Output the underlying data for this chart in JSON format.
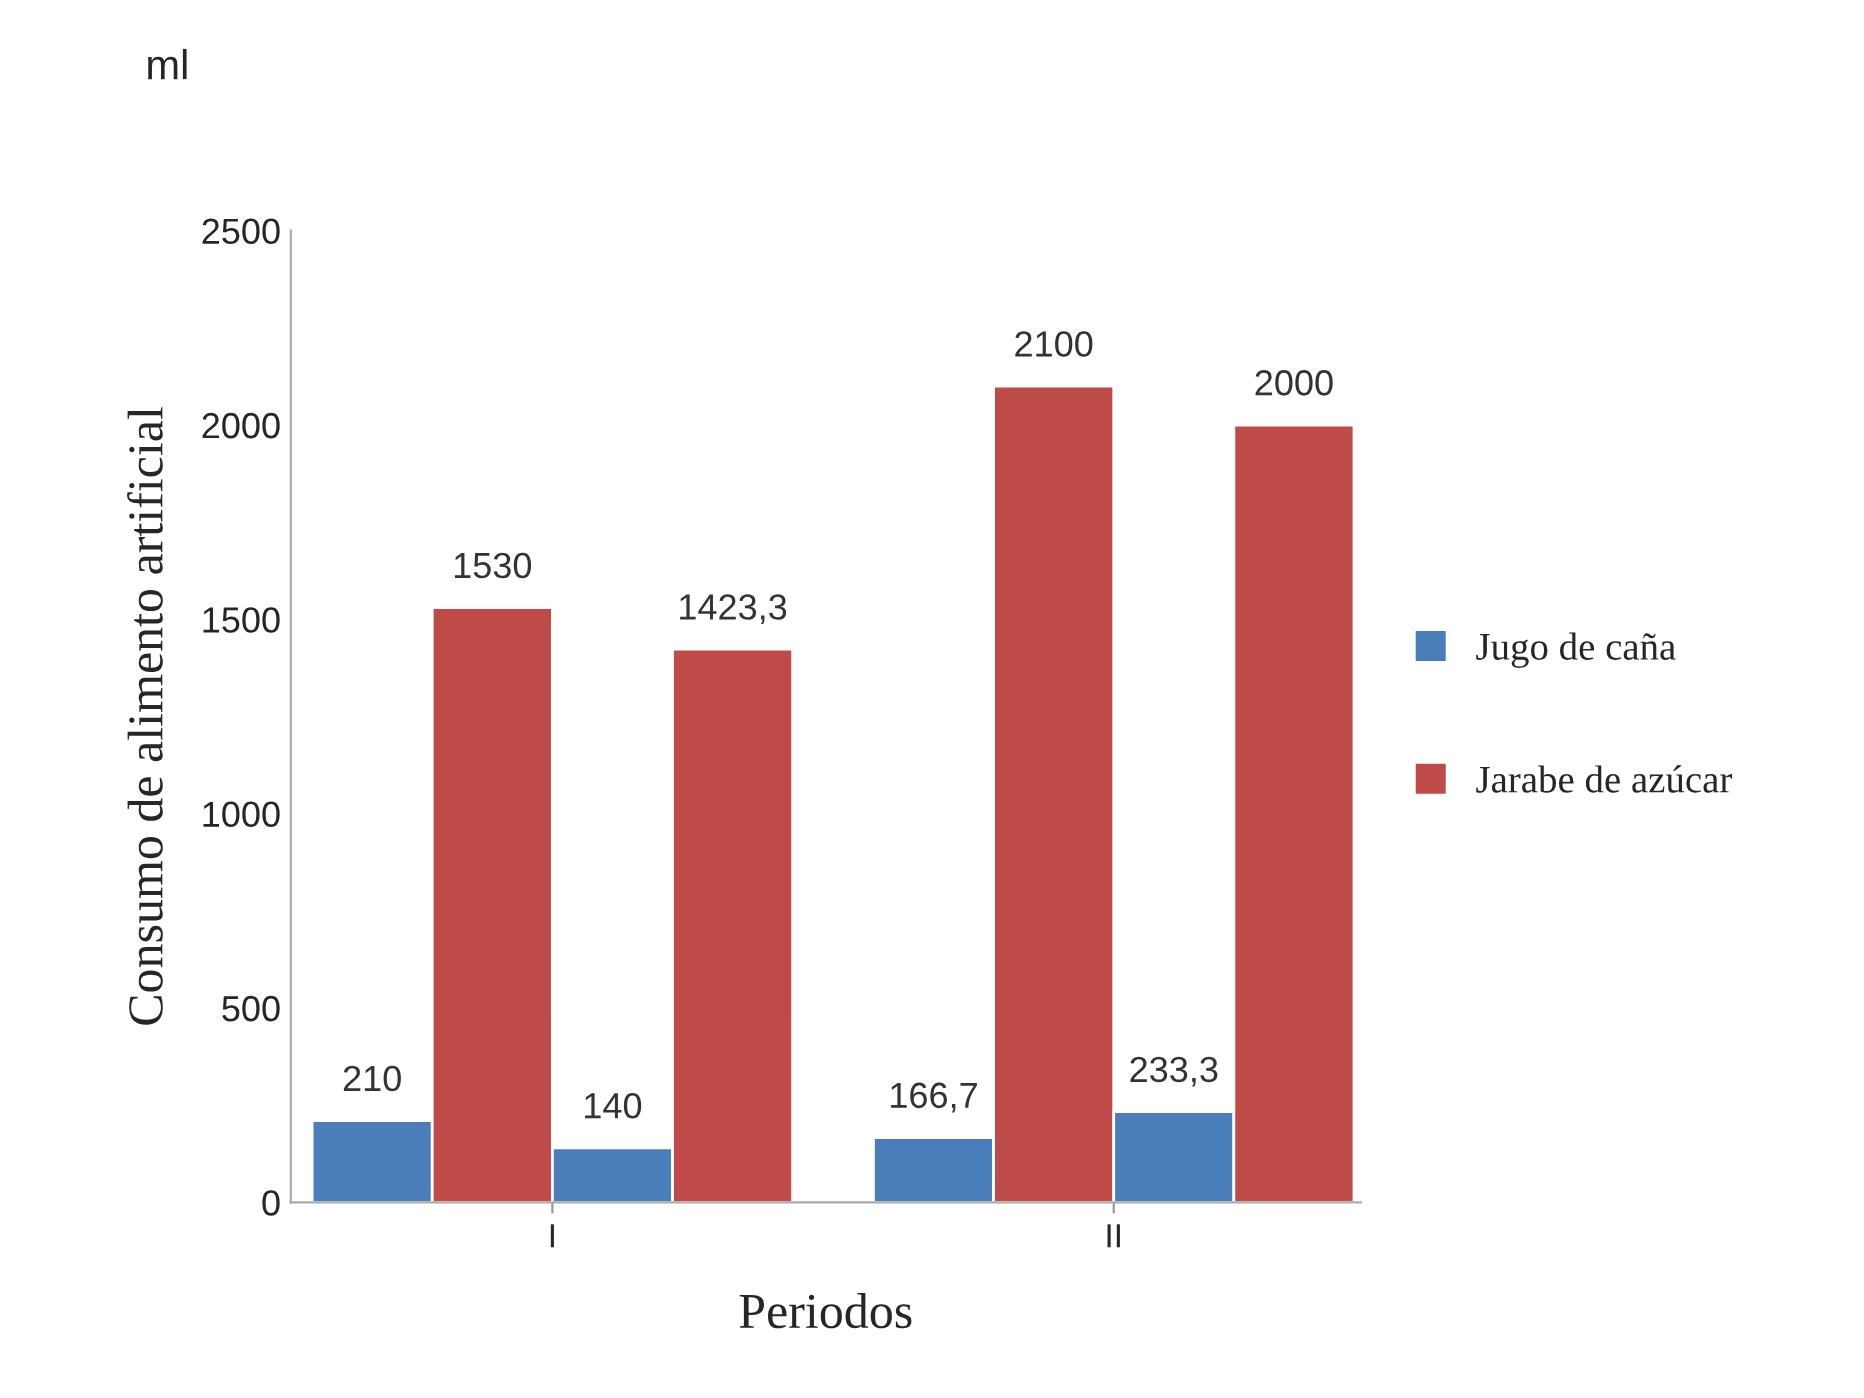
{
  "chart_data": {
    "type": "bar",
    "xlabel": "Periodos",
    "ylabel": "Consumo de alimento artificial",
    "annotations": [
      "ml"
    ],
    "categories": [
      "I",
      "II"
    ],
    "series": [
      {
        "name": "Jugo de caña",
        "color": "#4a7ebb",
        "values": [
          210,
          166.7
        ],
        "value_labels": [
          "210",
          "166,7"
        ]
      },
      {
        "name": "Jarabe de azúcar",
        "color": "#be4b48",
        "values": [
          1530,
          2100
        ],
        "value_labels": [
          "1530",
          "2100"
        ]
      },
      {
        "color": "#4a7ebb",
        "values": [
          140,
          233.3
        ],
        "value_labels": [
          "140",
          "233,3"
        ]
      },
      {
        "color": "#be4b48",
        "values": [
          1423.3,
          2000
        ],
        "value_labels": [
          "1423,3",
          "2000"
        ]
      }
    ],
    "ylim": [
      0,
      2500
    ],
    "yticks": [
      0,
      500,
      1000,
      1500,
      2000,
      2500
    ],
    "grid": false,
    "legend": "right"
  }
}
